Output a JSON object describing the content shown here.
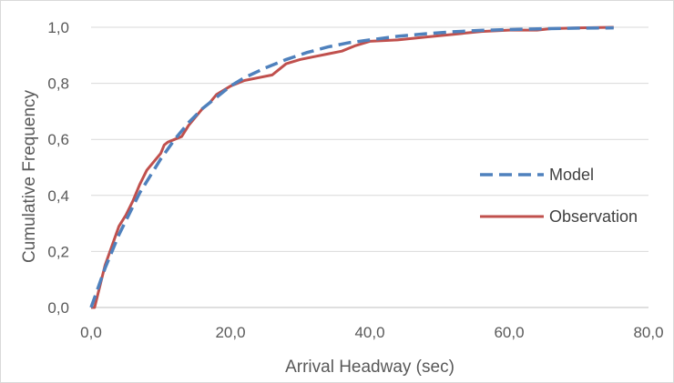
{
  "chart_data": {
    "type": "line",
    "title": "",
    "xlabel": "Arrival Headway (sec)",
    "ylabel": "Cumulative Frequency",
    "xlim": [
      0,
      80
    ],
    "ylim": [
      0,
      1
    ],
    "xticks": [
      0,
      20,
      40,
      60,
      80
    ],
    "yticks": [
      0,
      0.2,
      0.4,
      0.6,
      0.8,
      1.0
    ],
    "xtick_labels": [
      "0,0",
      "20,0",
      "40,0",
      "60,0",
      "80,0"
    ],
    "ytick_labels": [
      "0,0",
      "0,2",
      "0,4",
      "0,6",
      "0,8",
      "1,0"
    ],
    "grid": "horizontal",
    "legend": "right",
    "series": [
      {
        "name": "Model",
        "style": "dashed",
        "color": "#4f81bd",
        "x": [
          0,
          1,
          2,
          3,
          4,
          5,
          6,
          7,
          8,
          9,
          10,
          12,
          14,
          16,
          18,
          20,
          22,
          25,
          28,
          31,
          34,
          37,
          40,
          44,
          48,
          52,
          56,
          60,
          65,
          70,
          75
        ],
        "y": [
          0,
          0.07,
          0.14,
          0.2,
          0.26,
          0.31,
          0.36,
          0.41,
          0.45,
          0.49,
          0.53,
          0.6,
          0.66,
          0.71,
          0.75,
          0.79,
          0.82,
          0.855,
          0.885,
          0.91,
          0.93,
          0.945,
          0.955,
          0.968,
          0.977,
          0.984,
          0.989,
          0.992,
          0.995,
          0.997,
          0.998
        ]
      },
      {
        "name": "Observation",
        "style": "solid",
        "color": "#c0504d",
        "x": [
          0,
          0.5,
          1,
          1.5,
          2,
          3,
          4,
          5,
          6,
          7,
          8,
          9,
          10,
          10.5,
          11,
          12,
          13,
          14,
          15,
          16,
          17,
          18,
          20,
          22,
          24,
          26,
          27,
          28,
          30,
          32,
          34,
          36,
          38,
          40,
          44,
          48,
          52,
          56,
          60,
          64,
          66,
          70,
          75
        ],
        "y": [
          0,
          0,
          0.05,
          0.1,
          0.15,
          0.22,
          0.29,
          0.33,
          0.38,
          0.44,
          0.49,
          0.52,
          0.55,
          0.58,
          0.59,
          0.6,
          0.61,
          0.65,
          0.68,
          0.71,
          0.73,
          0.76,
          0.79,
          0.81,
          0.82,
          0.83,
          0.85,
          0.87,
          0.885,
          0.895,
          0.905,
          0.915,
          0.935,
          0.95,
          0.955,
          0.965,
          0.975,
          0.985,
          0.99,
          0.99,
          0.995,
          0.998,
          1.0
        ]
      }
    ]
  }
}
